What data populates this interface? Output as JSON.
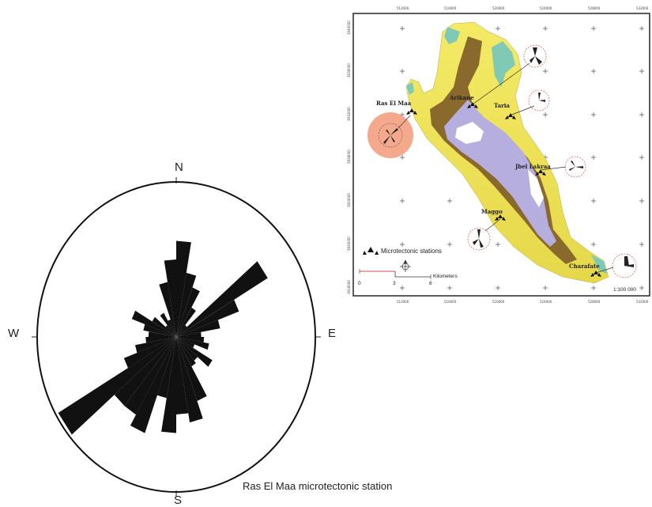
{
  "rose_diagram": {
    "directions": {
      "north": "N",
      "south": "S",
      "west": "W",
      "east": "E"
    },
    "petals": [
      {
        "azimuth": 5,
        "length": 0.62
      },
      {
        "azimuth": 15,
        "length": 0.42
      },
      {
        "azimuth": 25,
        "length": 0.34
      },
      {
        "azimuth": 35,
        "length": 0.22
      },
      {
        "azimuth": 45,
        "length": 0.1
      },
      {
        "azimuth": 55,
        "length": 0.76
      },
      {
        "azimuth": 65,
        "length": 0.48
      },
      {
        "azimuth": 75,
        "length": 0.32
      },
      {
        "azimuth": 85,
        "length": 0.18
      },
      {
        "azimuth": 95,
        "length": 0.2
      },
      {
        "azimuth": 105,
        "length": 0.24
      },
      {
        "azimuth": 115,
        "length": 0.14
      },
      {
        "azimuth": 125,
        "length": 0.3
      },
      {
        "azimuth": 135,
        "length": 0.2
      },
      {
        "azimuth": 145,
        "length": 0.22
      },
      {
        "azimuth": 155,
        "length": 0.44
      },
      {
        "azimuth": 165,
        "length": 0.56
      },
      {
        "azimuth": 175,
        "length": 0.5
      },
      {
        "azimuth": 185,
        "length": 0.62
      },
      {
        "azimuth": 195,
        "length": 0.4
      },
      {
        "azimuth": 205,
        "length": 0.66
      },
      {
        "azimuth": 215,
        "length": 0.58
      },
      {
        "azimuth": 225,
        "length": 0.58
      },
      {
        "azimuth": 235,
        "length": 0.98
      },
      {
        "azimuth": 245,
        "length": 0.4
      },
      {
        "azimuth": 255,
        "length": 0.3
      },
      {
        "azimuth": 265,
        "length": 0.22
      },
      {
        "azimuth": 275,
        "length": 0.2
      },
      {
        "azimuth": 285,
        "length": 0.24
      },
      {
        "azimuth": 295,
        "length": 0.34
      },
      {
        "azimuth": 305,
        "length": 0.2
      },
      {
        "azimuth": 315,
        "length": 0.1
      },
      {
        "azimuth": 325,
        "length": 0.18
      },
      {
        "azimuth": 335,
        "length": 0.12
      },
      {
        "azimuth": 345,
        "length": 0.36
      },
      {
        "azimuth": 355,
        "length": 0.5
      }
    ]
  },
  "caption": "Ras El Maa microtectonic station",
  "map": {
    "x_ticks": [
      "512000",
      "516000",
      "520000",
      "524000",
      "528000",
      "532000"
    ],
    "y_ticks": [
      "3940000",
      "3936000",
      "3932000",
      "3928000",
      "3924000",
      "3920000",
      "3916000"
    ],
    "stations": [
      {
        "name": "Ras El Maa"
      },
      {
        "name": "Arikane"
      },
      {
        "name": "Taria"
      },
      {
        "name": "Jbel Lakraa"
      },
      {
        "name": "Maggo"
      },
      {
        "name": "Charafate"
      }
    ],
    "legend_label": "Microtectonic stations",
    "scale": {
      "ticks": [
        "0",
        "3",
        "6"
      ],
      "unit": "Kilometers"
    },
    "scale_ratio": "1:100 000",
    "colors": {
      "highlight": "#f4a98c",
      "frame": "#333333",
      "lowland_cyan": "#7fc9b5",
      "yellow": "#f2e65a",
      "brown": "#8a6a2c",
      "lavender": "#b7aee0",
      "white_peak": "#ffffff"
    }
  }
}
